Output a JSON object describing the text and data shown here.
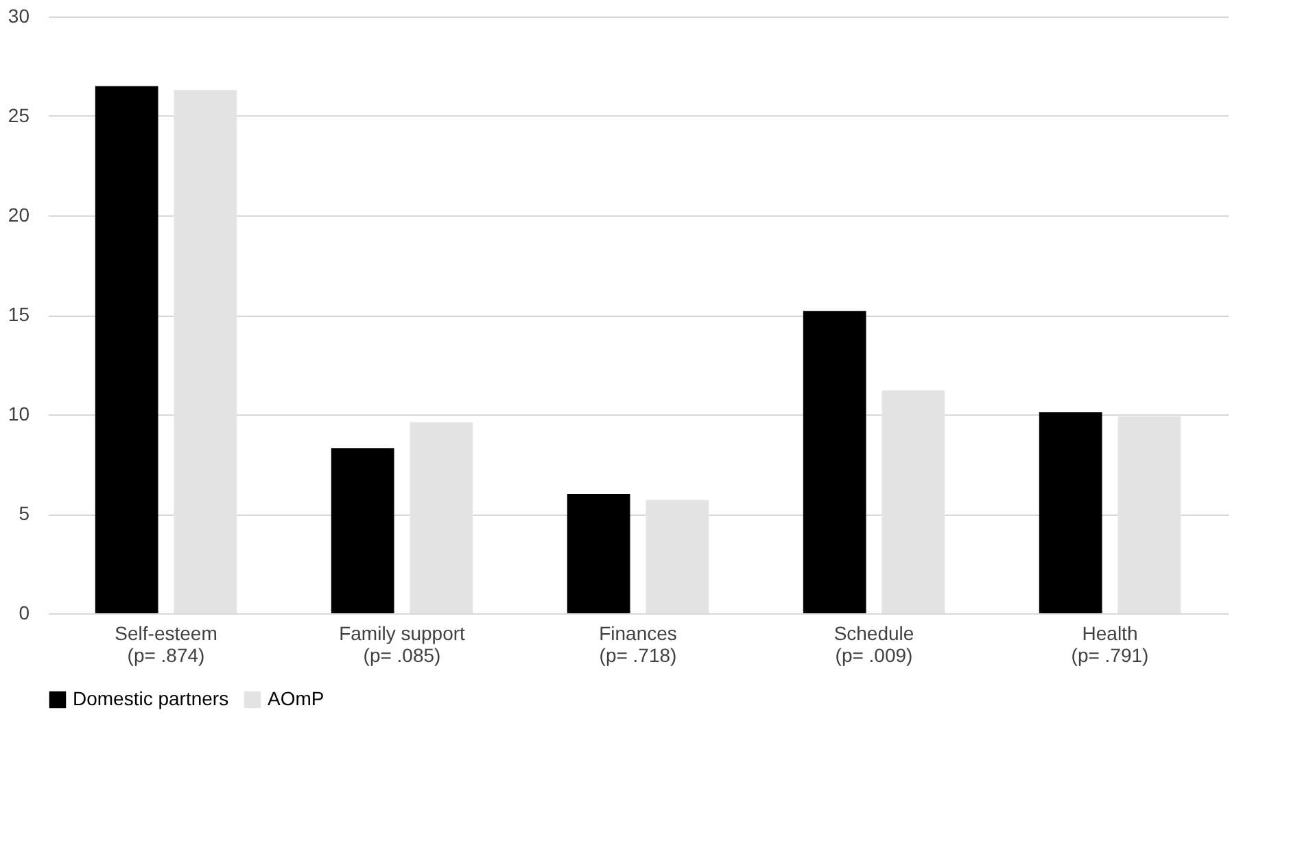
{
  "chart_data": {
    "type": "bar",
    "categories": [
      "Self-esteem\n(p= .874)",
      "Family support\n(p= .085)",
      "Finances\n(p= .718)",
      "Schedule\n(p= .009)",
      "Health\n(p= .791)"
    ],
    "series": [
      {
        "name": "Domestic partners",
        "color": "#000000",
        "values": [
          26.5,
          8.3,
          6.0,
          15.2,
          10.1
        ]
      },
      {
        "name": "AOmP",
        "color": "#e3e3e3",
        "values": [
          26.3,
          9.6,
          5.7,
          11.2,
          9.9
        ]
      }
    ],
    "ylim": [
      0,
      30
    ],
    "yticks": [
      0,
      5,
      10,
      15,
      20,
      25,
      30
    ],
    "grid": "y",
    "legend": "bottom"
  }
}
